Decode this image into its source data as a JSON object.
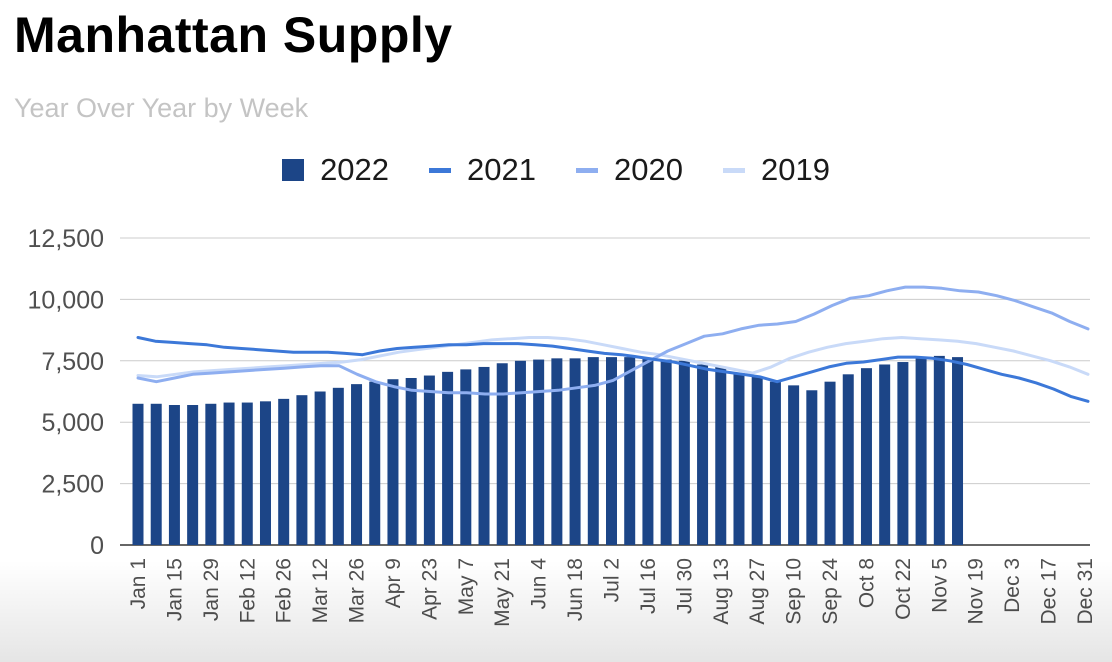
{
  "chart_data": {
    "type": "bar",
    "title": "Manhattan Supply",
    "subtitle": "Year Over Year by Week",
    "xlabel": "",
    "ylabel": "",
    "ylim": [
      0,
      12500
    ],
    "yticks": [
      "0",
      "2,500",
      "5,000",
      "7,500",
      "10,000",
      "12,500"
    ],
    "ytick_values": [
      0,
      2500,
      5000,
      7500,
      10000,
      12500
    ],
    "grid": true,
    "legend_position": "top",
    "x_labels": [
      "Jan 1",
      "Jan 15",
      "Jan 29",
      "Feb 12",
      "Feb 26",
      "Mar 12",
      "Mar 26",
      "Apr 9",
      "Apr 23",
      "May 7",
      "May 21",
      "Jun 4",
      "Jun 18",
      "Jul 2",
      "Jul 16",
      "Jul 30",
      "Aug 13",
      "Aug 27",
      "Sep 10",
      "Sep 24",
      "Oct 8",
      "Oct 22",
      "Nov 5",
      "Nov 19",
      "Dec 3",
      "Dec 17",
      "Dec 31"
    ],
    "series": [
      {
        "name": "2022",
        "kind": "bar",
        "color": "#1c4587",
        "values": [
          5750,
          5750,
          5700,
          5700,
          5750,
          5800,
          5800,
          5850,
          5950,
          6100,
          6250,
          6400,
          6550,
          6650,
          6750,
          6800,
          6900,
          7050,
          7150,
          7250,
          7400,
          7500,
          7550,
          7600,
          7600,
          7650,
          7650,
          7650,
          7600,
          7550,
          7500,
          7350,
          7250,
          7000,
          6850,
          6650,
          6500,
          6300,
          6650,
          6950,
          7200,
          7350,
          7450,
          7600,
          7700,
          7650
        ]
      },
      {
        "name": "2021",
        "kind": "line",
        "color": "#3c78d8",
        "values": [
          8450,
          8300,
          8250,
          8200,
          8150,
          8050,
          8000,
          7950,
          7900,
          7850,
          7850,
          7850,
          7800,
          7750,
          7900,
          8000,
          8050,
          8100,
          8150,
          8150,
          8200,
          8200,
          8200,
          8150,
          8100,
          8000,
          7900,
          7800,
          7750,
          7650,
          7550,
          7450,
          7300,
          7150,
          7050,
          6950,
          6850,
          6650,
          6850,
          7050,
          7250,
          7400,
          7450,
          7550,
          7650,
          7650,
          7600,
          7500,
          7350,
          7150,
          6950,
          6800,
          6600,
          6350,
          6050,
          5850
        ]
      },
      {
        "name": "2020",
        "kind": "line",
        "color": "#8eaef0",
        "values": [
          6800,
          6650,
          6800,
          6950,
          7000,
          7050,
          7100,
          7150,
          7200,
          7250,
          7300,
          7300,
          6950,
          6650,
          6450,
          6300,
          6250,
          6200,
          6200,
          6150,
          6150,
          6200,
          6250,
          6300,
          6400,
          6500,
          6700,
          7100,
          7500,
          7900,
          8200,
          8500,
          8600,
          8800,
          8950,
          9000,
          9100,
          9400,
          9750,
          10050,
          10150,
          10350,
          10500,
          10500,
          10450,
          10350,
          10300,
          10150,
          9950,
          9700,
          9450,
          9100,
          8800
        ]
      },
      {
        "name": "2019",
        "kind": "line",
        "color": "#c9daf8",
        "values": [
          6900,
          6850,
          6950,
          7050,
          7100,
          7150,
          7200,
          7250,
          7300,
          7350,
          7400,
          7450,
          7550,
          7700,
          7850,
          7950,
          8050,
          8150,
          8250,
          8350,
          8400,
          8450,
          8450,
          8400,
          8300,
          8150,
          8000,
          7850,
          7750,
          7600,
          7450,
          7300,
          7150,
          7000,
          7250,
          7600,
          7850,
          8050,
          8200,
          8300,
          8400,
          8450,
          8400,
          8350,
          8300,
          8200,
          8050,
          7900,
          7700,
          7500,
          7250,
          6950
        ]
      }
    ]
  }
}
